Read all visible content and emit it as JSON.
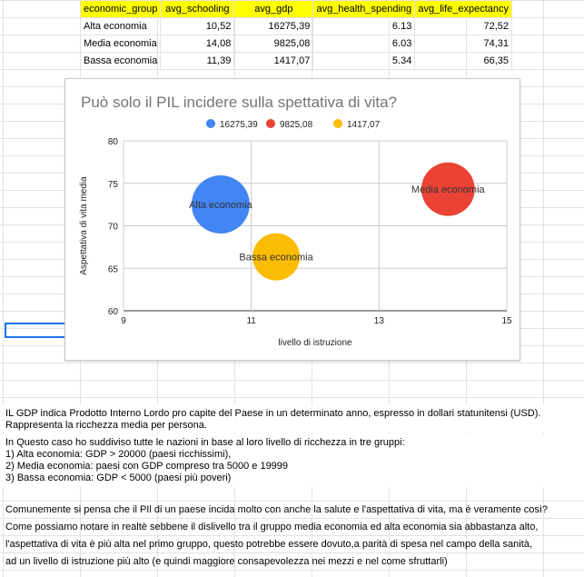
{
  "table": {
    "headers": [
      "economic_group",
      "avg_schooling",
      "avg_gdp",
      "avg_health_spending",
      "avg_life_expectancy"
    ],
    "rows": [
      [
        "Alta economia",
        "10,52",
        "16275,39",
        "6.13",
        "72,52"
      ],
      [
        "Media economia",
        "14,08",
        "9825,08",
        "6.03",
        "74,31"
      ],
      [
        "Bassa economia",
        "11,39",
        "1417,07",
        "5.34",
        "66,35"
      ]
    ]
  },
  "chart_data": {
    "type": "scatter",
    "title": "Può solo il PIL incidere sulla spettativa di vita?",
    "xlabel": "livello di istruzione",
    "ylabel": "Aspettativa di vita media",
    "xlim": [
      9,
      15
    ],
    "ylim": [
      60,
      80
    ],
    "x_ticks": [
      9,
      11,
      13,
      15
    ],
    "y_ticks": [
      60,
      65,
      70,
      75,
      80
    ],
    "grid": true,
    "legend_position": "top",
    "series": [
      {
        "name": "16275,39",
        "label": "Alta economia",
        "x": 10.52,
        "y": 72.52,
        "size": 16275.39,
        "color": "#4285f4"
      },
      {
        "name": "9825,08",
        "label": "Media economia",
        "x": 14.08,
        "y": 74.31,
        "size": 9825.08,
        "color": "#ea4335"
      },
      {
        "name": "1417,07",
        "label": "Bassa economia",
        "x": 11.39,
        "y": 66.35,
        "size": 1417.07,
        "color": "#fbbc04"
      }
    ]
  },
  "notes": {
    "block1": [
      "IL GDP indica Prodotto Interno Lordo pro capite del Paese in un determinato anno, espresso in dollari statunitensi (USD).",
      "Rappresenta la ricchezza media per persona."
    ],
    "block2": [
      "In Questo caso ho suddiviso tutte le nazioni in base al loro livello di ricchezza in tre gruppi:",
      "1) Alta economia: GDP > 20000 (paesi ricchissimi),",
      "2) Media economia: paesi con GDP compreso tra 5000 e 19999",
      "3) Bassa economia: GDP < 5000 (paesi più poveri)"
    ],
    "block3": [
      " Comunemente si pensa che il PIl di un paese incida molto con anche la salute e l'aspettativa di vita, ma è veramente così?",
      "Come possiamo notare in realtè sebbene il dislivello tra il gruppo media economia ed alta economia sia abbastanza alto,",
      " l'aspettativa di vita è più alta nel primo gruppo, questo potrebbe essere dovuto,a parità di spesa nel campo della sanità,",
      "ad un livello di istruzione più alto (e quindi maggiore consapevolezza nei mezzi e nel come sfruttarli)"
    ]
  }
}
